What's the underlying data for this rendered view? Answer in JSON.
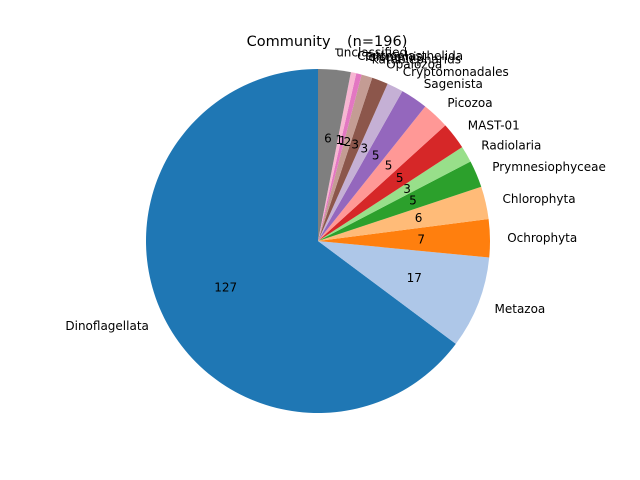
{
  "chart_data": {
    "type": "pie",
    "title": "Community _ (n=196)",
    "total": 196,
    "start_angle": 90,
    "direction": "counterclockwise",
    "label_distance": 1.1,
    "value_distance": 0.6,
    "legend": "none",
    "background_color": "#ffffff",
    "text_color": "#000000",
    "slices": [
      {
        "label": "Dinoflagellata",
        "value": 127,
        "color": "#1f77b4"
      },
      {
        "label": "Metazoa",
        "value": 17,
        "color": "#aec7e8"
      },
      {
        "label": "Ochrophyta",
        "value": 7,
        "color": "#ff7f0e"
      },
      {
        "label": "Chlorophyta",
        "value": 6,
        "color": "#ffbb78"
      },
      {
        "label": "Prymnesiophyceae",
        "value": 5,
        "color": "#2ca02c"
      },
      {
        "label": "Radiolaria",
        "value": 3,
        "color": "#98df8a"
      },
      {
        "label": "MAST-01",
        "value": 5,
        "color": "#d62728"
      },
      {
        "label": "Picozoa",
        "value": 5,
        "color": "#ff9896"
      },
      {
        "label": "Sagenista",
        "value": 5,
        "color": "#9467bd"
      },
      {
        "label": "Cryptomonadales",
        "value": 3,
        "color": "#c5b0d5"
      },
      {
        "label": "Opalozoa",
        "value": 3,
        "color": "#8c564b"
      },
      {
        "label": "katablepharids",
        "value": 2,
        "color": "#c49c94"
      },
      {
        "label": "Telonemia",
        "value": 1,
        "color": "#e377c2"
      },
      {
        "label": "Centroplasthelida",
        "value": 1,
        "color": "#f7b6d2"
      },
      {
        "label": "unclassified",
        "value": 6,
        "color": "#7f7f7f"
      }
    ]
  }
}
